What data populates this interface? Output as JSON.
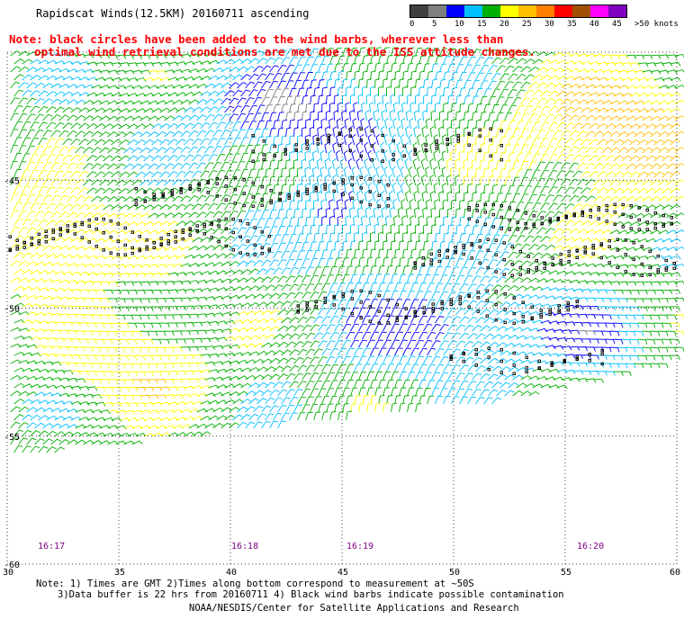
{
  "header": {
    "title": "Rapidscat Winds(12.5KM) 20160711 ascending",
    "note_line1": "Note: black circles have been added to the wind barbs, wherever less than",
    "note_line2": "optimal wind retrieval conditions are met due to the ISS attitude changes."
  },
  "color_scale": {
    "labels": [
      "0",
      "5",
      "10",
      "15",
      "20",
      "25",
      "30",
      "35",
      "40",
      "45",
      ">50 knots"
    ],
    "colors": [
      "#404040",
      "#7f7f7f",
      "#0000ff",
      "#00bfff",
      "#00b000",
      "#ffff00",
      "#ffc000",
      "#ff8000",
      "#ff0000",
      "#a05000",
      "#ff00ff",
      "#8000c0"
    ]
  },
  "map": {
    "lat_labels": [
      "-45",
      "-50",
      "-55",
      "-60"
    ],
    "lon_labels": [
      "30",
      "35",
      "40",
      "45",
      "50",
      "55",
      "60"
    ],
    "time_labels": [
      "16:17",
      "16:18",
      "16:19",
      "16:20"
    ]
  },
  "footer": {
    "line1": "Note: 1) Times are GMT 2)Times along bottom correspond to measurement at ~50S",
    "line2": "3)Data buffer is 22 hrs from 20160711 4) Black wind barbs indicate possible contamination",
    "line3": "NOAA/NESDIS/Center for Satellite Applications and Research"
  }
}
